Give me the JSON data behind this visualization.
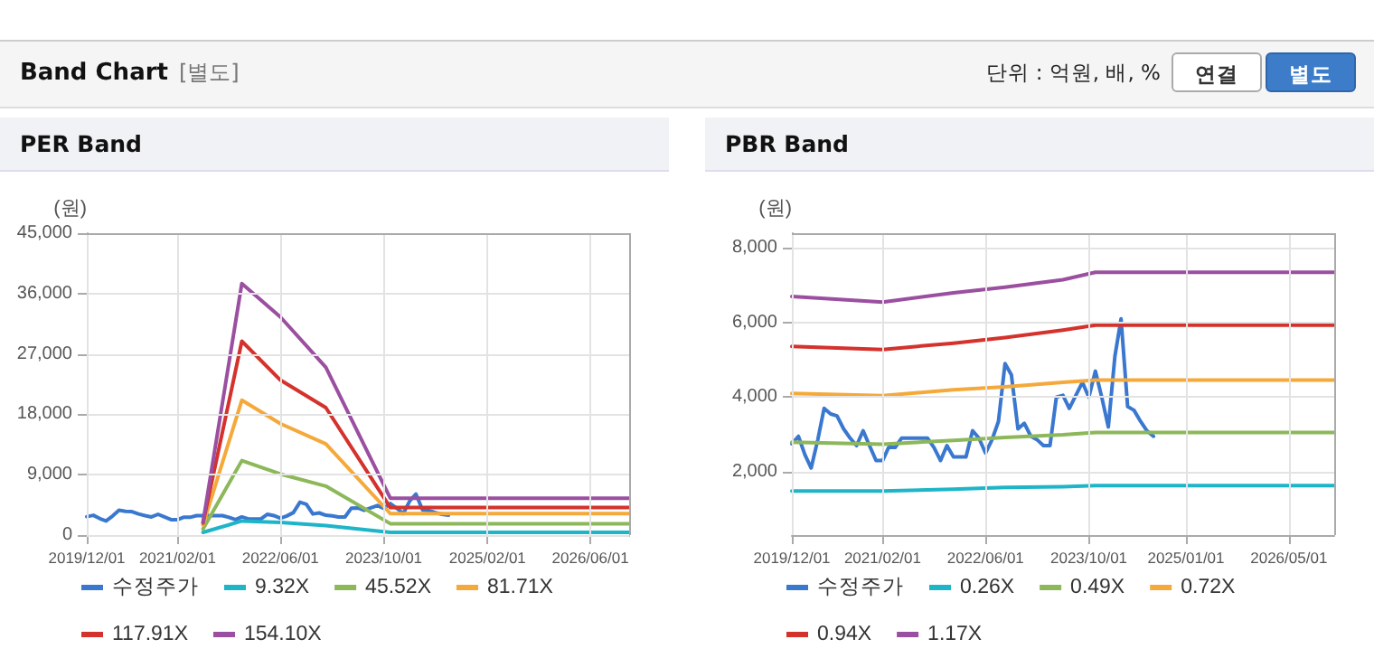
{
  "chart_data": [
    {
      "type": "other",
      "title": "Band Chart",
      "subtitle": "[별도]",
      "annotations": [
        "단위 : 억원, 배, %",
        "연결",
        "별도"
      ]
    },
    {
      "type": "line",
      "title": "PER Band",
      "ylabel": "(원)",
      "xlim": [
        "2019-12-01",
        "2026-12-01"
      ],
      "xticks": [
        {
          "value": "2019-12-01",
          "label": "2019/12/01"
        },
        {
          "value": "2021-02-01",
          "label": "2021/02/01"
        },
        {
          "value": "2022-06-01",
          "label": "2022/06/01"
        },
        {
          "value": "2023-10-01",
          "label": "2023/10/01"
        },
        {
          "value": "2025-02-01",
          "label": "2025/02/01"
        },
        {
          "value": "2026-06-01",
          "label": "2026/06/01"
        }
      ],
      "ylim": [
        0,
        45000
      ],
      "yticks": [
        0,
        {
          "value": 9000,
          "label": "9,000"
        },
        {
          "value": 18000,
          "label": "18,000"
        },
        {
          "value": 27000,
          "label": "27,000"
        },
        {
          "value": 36000,
          "label": "36,000"
        },
        {
          "value": 45000,
          "label": "45,000"
        }
      ],
      "grid": true,
      "legend": "bottom",
      "marker": "none",
      "line_style": "solid",
      "series": [
        {
          "name": "수정주가",
          "color": "#3a78d0",
          "x": [
            "2019-12",
            "2020-01",
            "2020-02",
            "2020-03",
            "2020-04",
            "2020-05",
            "2020-06",
            "2020-07",
            "2020-08",
            "2020-09",
            "2020-10",
            "2020-11",
            "2020-12",
            "2021-01",
            "2021-02",
            "2021-03",
            "2021-04",
            "2021-05",
            "2021-06",
            "2021-07",
            "2021-08",
            "2021-09",
            "2021-10",
            "2021-11",
            "2021-12",
            "2022-01",
            "2022-02",
            "2022-03",
            "2022-04",
            "2022-05",
            "2022-06",
            "2022-07",
            "2022-08",
            "2022-09",
            "2022-10",
            "2022-11",
            "2022-12",
            "2023-01",
            "2023-02",
            "2023-03",
            "2023-04",
            "2023-05",
            "2023-06",
            "2023-07",
            "2023-08",
            "2023-09",
            "2023-10",
            "2023-11",
            "2023-12",
            "2024-01",
            "2024-02",
            "2024-03",
            "2024-04",
            "2024-05",
            "2024-06",
            "2024-07",
            "2024-08"
          ],
          "values": [
            2750,
            2950,
            2450,
            2100,
            2850,
            3700,
            3550,
            3500,
            3150,
            2900,
            2700,
            3100,
            2700,
            2300,
            2300,
            2650,
            2650,
            2900,
            2900,
            2900,
            2900,
            2900,
            2650,
            2300,
            2700,
            2400,
            2400,
            2400,
            3100,
            2900,
            2500,
            2850,
            3350,
            4900,
            4600,
            3150,
            3300,
            2950,
            2850,
            2700,
            2700,
            4000,
            4050,
            3700,
            4050,
            4400,
            4000,
            4700,
            4000,
            3200,
            5100,
            6100,
            3750,
            3650,
            3350,
            3100,
            2950
          ]
        },
        {
          "name": "9.32X",
          "color": "#1fb5c8",
          "x": [
            "2021-06",
            "2021-12",
            "2022-06",
            "2023-01",
            "2023-11",
            "2026-12"
          ],
          "values": [
            400,
            2100,
            1900,
            1400,
            400,
            400
          ]
        },
        {
          "name": "45.52X",
          "color": "#8cb85a",
          "x": [
            "2021-06",
            "2021-12",
            "2022-06",
            "2023-01",
            "2023-11",
            "2026-12"
          ],
          "values": [
            900,
            11100,
            9100,
            7300,
            1700,
            1700
          ]
        },
        {
          "name": "81.71X",
          "color": "#f4a93a",
          "x": [
            "2021-06",
            "2021-12",
            "2022-06",
            "2023-01",
            "2023-11",
            "2026-12"
          ],
          "values": [
            1500,
            20100,
            16600,
            13600,
            3200,
            3200
          ]
        },
        {
          "name": "117.91X",
          "color": "#d4322c",
          "x": [
            "2021-06",
            "2021-12",
            "2022-06",
            "2023-01",
            "2023-11",
            "2026-12"
          ],
          "values": [
            1800,
            28900,
            23100,
            19000,
            4100,
            4100
          ]
        },
        {
          "name": "154.10X",
          "color": "#9b4fa0",
          "x": [
            "2021-06",
            "2021-12",
            "2022-06",
            "2023-01",
            "2023-11",
            "2026-12"
          ],
          "values": [
            1900,
            37500,
            32500,
            25000,
            5500,
            5500
          ]
        }
      ]
    },
    {
      "type": "line",
      "title": "PBR Band",
      "ylabel": "(원)",
      "xlim": [
        "2019-12-01",
        "2026-12-01"
      ],
      "xticks": [
        {
          "value": "2019-12-01",
          "label": "2019/12/01"
        },
        {
          "value": "2021-02-01",
          "label": "2021/02/01"
        },
        {
          "value": "2022-06-01",
          "label": "2022/06/01"
        },
        {
          "value": "2023-10-01",
          "label": "2023/10/01"
        },
        {
          "value": "2025-01-01",
          "label": "2025/01/01"
        },
        {
          "value": "2026-05-01",
          "label": "2026/05/01"
        }
      ],
      "ylim": [
        300,
        8400
      ],
      "yticks": [
        {
          "value": 2000,
          "label": "2,000"
        },
        {
          "value": 4000,
          "label": "4,000"
        },
        {
          "value": 6000,
          "label": "6,000"
        },
        {
          "value": 8000,
          "label": "8,000"
        }
      ],
      "grid": true,
      "legend": "bottom",
      "marker": "none",
      "line_style": "solid",
      "series": [
        {
          "name": "수정주가",
          "color": "#3a78d0",
          "x": [
            "2019-12",
            "2020-01",
            "2020-02",
            "2020-03",
            "2020-04",
            "2020-05",
            "2020-06",
            "2020-07",
            "2020-08",
            "2020-09",
            "2020-10",
            "2020-11",
            "2020-12",
            "2021-01",
            "2021-02",
            "2021-03",
            "2021-04",
            "2021-05",
            "2021-06",
            "2021-07",
            "2021-08",
            "2021-09",
            "2021-10",
            "2021-11",
            "2021-12",
            "2022-01",
            "2022-02",
            "2022-03",
            "2022-04",
            "2022-05",
            "2022-06",
            "2022-07",
            "2022-08",
            "2022-09",
            "2022-10",
            "2022-11",
            "2022-12",
            "2023-01",
            "2023-02",
            "2023-03",
            "2023-04",
            "2023-05",
            "2023-06",
            "2023-07",
            "2023-08",
            "2023-09",
            "2023-10",
            "2023-11",
            "2023-12",
            "2024-01",
            "2024-02",
            "2024-03",
            "2024-04",
            "2024-05",
            "2024-06",
            "2024-07",
            "2024-08"
          ],
          "values": [
            2750,
            2950,
            2450,
            2100,
            2850,
            3700,
            3550,
            3500,
            3150,
            2900,
            2700,
            3100,
            2700,
            2300,
            2300,
            2650,
            2650,
            2900,
            2900,
            2900,
            2900,
            2900,
            2650,
            2300,
            2700,
            2400,
            2400,
            2400,
            3100,
            2900,
            2500,
            2850,
            3350,
            4900,
            4600,
            3150,
            3300,
            2950,
            2850,
            2700,
            2700,
            4000,
            4050,
            3700,
            4050,
            4400,
            4000,
            4700,
            4000,
            3200,
            5100,
            6100,
            3750,
            3650,
            3350,
            3100,
            2950
          ]
        },
        {
          "name": "0.26X",
          "color": "#1fb5c8",
          "x": [
            "2019-12",
            "2021-02",
            "2022-01",
            "2022-09",
            "2023-06",
            "2023-11",
            "2026-12"
          ],
          "values": [
            1480,
            1480,
            1530,
            1580,
            1600,
            1630,
            1630
          ]
        },
        {
          "name": "0.49X",
          "color": "#8cb85a",
          "x": [
            "2019-12",
            "2021-02",
            "2022-01",
            "2022-09",
            "2023-06",
            "2023-11",
            "2026-12"
          ],
          "values": [
            2790,
            2740,
            2840,
            2920,
            2990,
            3050,
            3050
          ]
        },
        {
          "name": "0.72X",
          "color": "#f4a93a",
          "x": [
            "2019-12",
            "2021-02",
            "2022-01",
            "2022-09",
            "2023-06",
            "2023-11",
            "2026-12"
          ],
          "values": [
            4100,
            4040,
            4200,
            4280,
            4400,
            4460,
            4460
          ]
        },
        {
          "name": "0.94X",
          "color": "#d4322c",
          "x": [
            "2019-12",
            "2021-02",
            "2022-01",
            "2022-09",
            "2023-06",
            "2023-11",
            "2026-12"
          ],
          "values": [
            5360,
            5280,
            5450,
            5600,
            5800,
            5930,
            5930
          ]
        },
        {
          "name": "1.17X",
          "color": "#9b4fa0",
          "x": [
            "2019-12",
            "2021-02",
            "2022-01",
            "2022-09",
            "2023-06",
            "2023-11",
            "2026-12"
          ],
          "values": [
            6700,
            6550,
            6800,
            6950,
            7150,
            7350,
            7350
          ]
        }
      ]
    }
  ]
}
